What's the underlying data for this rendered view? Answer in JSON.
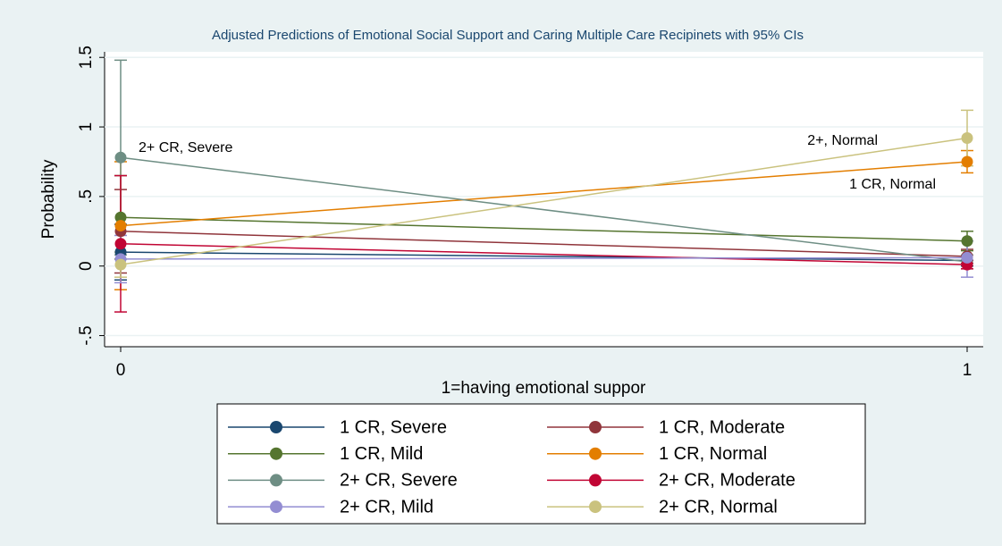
{
  "chart_data": {
    "type": "line",
    "title": "Adjusted Predictions of Emotional Social Support and Caring Multiple Care Recipinets with 95% CIs",
    "xlabel": "1=having emotional suppor",
    "ylabel": "Probability",
    "x": [
      0,
      1
    ],
    "xlim": [
      -0.019,
      1.019
    ],
    "xticks": [
      0,
      1
    ],
    "ylim": [
      -0.58,
      1.54
    ],
    "yticks": [
      {
        "value": -0.5,
        "label": "-.5"
      },
      0,
      {
        "value": 0.5,
        "label": ".5"
      },
      1,
      1.5
    ],
    "grid": true,
    "legend": "bottom",
    "annotations": [
      "2+ CR, Severe",
      "2+, Normal",
      "1 CR, Normal"
    ],
    "series": [
      {
        "name": "1 CR, Severe",
        "color": "#1a476f",
        "values": [
          0.1,
          0.04
        ],
        "ci_low": [
          -0.1,
          0.0
        ],
        "ci_high": [
          0.3,
          0.08
        ]
      },
      {
        "name": "1 CR, Moderate",
        "color": "#90353b",
        "values": [
          0.25,
          0.07
        ],
        "ci_low": [
          -0.05,
          0.02
        ],
        "ci_high": [
          0.55,
          0.12
        ]
      },
      {
        "name": "1 CR, Mild",
        "color": "#55752f",
        "values": [
          0.35,
          0.18
        ],
        "ci_low": [
          0.05,
          0.11
        ],
        "ci_high": [
          0.65,
          0.25
        ]
      },
      {
        "name": "1 CR, Normal",
        "color": "#e37e00",
        "values": [
          0.29,
          0.75
        ],
        "ci_low": [
          -0.17,
          0.67
        ],
        "ci_high": [
          0.75,
          0.83
        ]
      },
      {
        "name": "2+ CR, Severe",
        "color": "#6e8e84",
        "values": [
          0.78,
          0.03
        ],
        "ci_low": [
          0.08,
          -0.02
        ],
        "ci_high": [
          1.48,
          0.08
        ]
      },
      {
        "name": "2+ CR, Moderate",
        "color": "#c10534",
        "values": [
          0.16,
          0.01
        ],
        "ci_low": [
          -0.33,
          -0.02
        ],
        "ci_high": [
          0.65,
          0.04
        ]
      },
      {
        "name": "2+ CR, Mild",
        "color": "#938dd2",
        "values": [
          0.05,
          0.06
        ],
        "ci_low": [
          -0.12,
          -0.08
        ],
        "ci_high": [
          0.22,
          0.18
        ]
      },
      {
        "name": "2+ CR, Normal",
        "color": "#cac27e",
        "values": [
          0.01,
          0.92
        ],
        "ci_low": [
          -0.08,
          0.72
        ],
        "ci_high": [
          0.1,
          1.12
        ]
      }
    ]
  }
}
